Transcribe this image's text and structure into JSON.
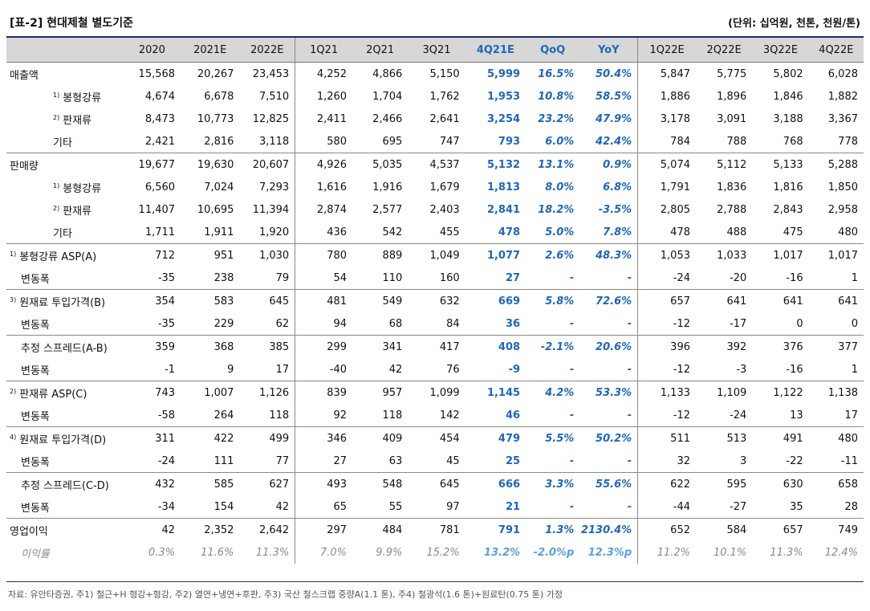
{
  "header": {
    "title": "[표-2] 현대제철 별도기준",
    "unit": "(단위: 십억원, 천톤, 천원/톤)"
  },
  "columns": [
    "2020",
    "2021E",
    "2022E",
    "1Q21",
    "2Q21",
    "3Q21",
    "4Q21E",
    "QoQ",
    "YoY",
    "1Q22E",
    "2Q22E",
    "3Q22E",
    "4Q22E"
  ],
  "rows": [
    {
      "sup": "",
      "label": "매출액",
      "style": "l1",
      "grp": true,
      "values": [
        "15,568",
        "20,267",
        "23,453",
        "4,252",
        "4,866",
        "5,150",
        "5,999",
        "16.5%",
        "50.4%",
        "5,847",
        "5,775",
        "5,802",
        "6,028"
      ]
    },
    {
      "sup": "1)",
      "label": "봉형강류",
      "style": "l2",
      "grp": false,
      "values": [
        "4,674",
        "6,678",
        "7,510",
        "1,260",
        "1,704",
        "1,762",
        "1,953",
        "10.8%",
        "58.5%",
        "1,886",
        "1,896",
        "1,846",
        "1,882"
      ]
    },
    {
      "sup": "2)",
      "label": "판재류",
      "style": "l2",
      "grp": false,
      "values": [
        "8,473",
        "10,773",
        "12,825",
        "2,411",
        "2,466",
        "2,641",
        "3,254",
        "23.2%",
        "47.9%",
        "3,178",
        "3,091",
        "3,188",
        "3,367"
      ]
    },
    {
      "sup": "",
      "label": "기타",
      "style": "l2",
      "grp": false,
      "values": [
        "2,421",
        "2,816",
        "3,118",
        "580",
        "695",
        "747",
        "793",
        "6.0%",
        "42.4%",
        "784",
        "788",
        "768",
        "778"
      ]
    },
    {
      "sup": "",
      "label": "판매량",
      "style": "l1",
      "grp": true,
      "values": [
        "19,677",
        "19,630",
        "20,607",
        "4,926",
        "5,035",
        "4,537",
        "5,132",
        "13.1%",
        "0.9%",
        "5,074",
        "5,112",
        "5,133",
        "5,288"
      ]
    },
    {
      "sup": "1)",
      "label": "봉형강류",
      "style": "l2",
      "grp": false,
      "values": [
        "6,560",
        "7,024",
        "7,293",
        "1,616",
        "1,916",
        "1,679",
        "1,813",
        "8.0%",
        "6.8%",
        "1,791",
        "1,836",
        "1,816",
        "1,850"
      ]
    },
    {
      "sup": "2)",
      "label": "판재류",
      "style": "l2",
      "grp": false,
      "values": [
        "11,407",
        "10,695",
        "11,394",
        "2,874",
        "2,577",
        "2,403",
        "2,841",
        "18.2%",
        "-3.5%",
        "2,805",
        "2,788",
        "2,843",
        "2,958"
      ]
    },
    {
      "sup": "",
      "label": "기타",
      "style": "l2",
      "grp": false,
      "values": [
        "1,711",
        "1,911",
        "1,920",
        "436",
        "542",
        "455",
        "478",
        "5.0%",
        "7.8%",
        "478",
        "488",
        "475",
        "480"
      ]
    },
    {
      "sup": "1)",
      "label": "봉형강류 ASP(A)",
      "style": "l1",
      "grp": true,
      "values": [
        "712",
        "951",
        "1,030",
        "780",
        "889",
        "1,049",
        "1,077",
        "2.6%",
        "48.3%",
        "1,053",
        "1,033",
        "1,017",
        "1,017"
      ]
    },
    {
      "sup": "",
      "label": "변동폭",
      "style": "l3",
      "grp": false,
      "values": [
        "-35",
        "238",
        "79",
        "54",
        "110",
        "160",
        "27",
        "-",
        "-",
        "-24",
        "-20",
        "-16",
        "1"
      ]
    },
    {
      "sup": "3)",
      "label": "원재료 투입가격(B)",
      "style": "l1",
      "grp": true,
      "values": [
        "354",
        "583",
        "645",
        "481",
        "549",
        "632",
        "669",
        "5.8%",
        "72.6%",
        "657",
        "641",
        "641",
        "641"
      ]
    },
    {
      "sup": "",
      "label": "변동폭",
      "style": "l3",
      "grp": false,
      "values": [
        "-35",
        "229",
        "62",
        "94",
        "68",
        "84",
        "36",
        "-",
        "-",
        "-12",
        "-17",
        "0",
        "0"
      ]
    },
    {
      "sup": "",
      "label": "추정 스프레드(A-B)",
      "style": "l3",
      "grp": true,
      "values": [
        "359",
        "368",
        "385",
        "299",
        "341",
        "417",
        "408",
        "-2.1%",
        "20.6%",
        "396",
        "392",
        "376",
        "377"
      ]
    },
    {
      "sup": "",
      "label": "변동폭",
      "style": "l3",
      "grp": false,
      "values": [
        "-1",
        "9",
        "17",
        "-40",
        "42",
        "76",
        "-9",
        "-",
        "-",
        "-12",
        "-3",
        "-16",
        "1"
      ]
    },
    {
      "sup": "2)",
      "label": "판재류 ASP(C)",
      "style": "l1",
      "grp": true,
      "values": [
        "743",
        "1,007",
        "1,126",
        "839",
        "957",
        "1,099",
        "1,145",
        "4.2%",
        "53.3%",
        "1,133",
        "1,109",
        "1,122",
        "1,138"
      ]
    },
    {
      "sup": "",
      "label": "변동폭",
      "style": "l3",
      "grp": false,
      "values": [
        "-58",
        "264",
        "118",
        "92",
        "118",
        "142",
        "46",
        "-",
        "-",
        "-12",
        "-24",
        "13",
        "17"
      ]
    },
    {
      "sup": "4)",
      "label": "원재료 투입가격(D)",
      "style": "l1",
      "grp": true,
      "values": [
        "311",
        "422",
        "499",
        "346",
        "409",
        "454",
        "479",
        "5.5%",
        "50.2%",
        "511",
        "513",
        "491",
        "480"
      ]
    },
    {
      "sup": "",
      "label": "변동폭",
      "style": "l3",
      "grp": false,
      "values": [
        "-24",
        "111",
        "77",
        "27",
        "63",
        "45",
        "25",
        "-",
        "-",
        "32",
        "3",
        "-22",
        "-11"
      ]
    },
    {
      "sup": "",
      "label": "추정 스프레드(C-D)",
      "style": "l3",
      "grp": true,
      "values": [
        "432",
        "585",
        "627",
        "493",
        "548",
        "645",
        "666",
        "3.3%",
        "55.6%",
        "622",
        "595",
        "630",
        "658"
      ]
    },
    {
      "sup": "",
      "label": "변동폭",
      "style": "l3",
      "grp": false,
      "values": [
        "-34",
        "154",
        "42",
        "65",
        "55",
        "97",
        "21",
        "-",
        "-",
        "-44",
        "-27",
        "35",
        "28"
      ]
    },
    {
      "sup": "",
      "label": "영업이익",
      "style": "l1",
      "grp": true,
      "values": [
        "42",
        "2,352",
        "2,642",
        "297",
        "484",
        "781",
        "791",
        "1.3%",
        "2130.4%",
        "652",
        "584",
        "657",
        "749"
      ]
    },
    {
      "sup": "",
      "label": "이익률",
      "style": "l3",
      "grp": false,
      "margin": true,
      "values": [
        "0.3%",
        "11.6%",
        "11.3%",
        "7.0%",
        "9.9%",
        "15.2%",
        "13.2%",
        "-2.0%p",
        "12.3%p",
        "11.2%",
        "10.1%",
        "11.3%",
        "12.4%"
      ]
    }
  ],
  "footnote": "자료: 유안타증권, 주1) 철근+H 형강+형강, 주2) 열연+냉연+후판, 주3) 국산 철스크랩 중량A(1.1 톤), 주4) 철광석(1.6 톤)+원료탄(0.75 톤) 가정"
}
